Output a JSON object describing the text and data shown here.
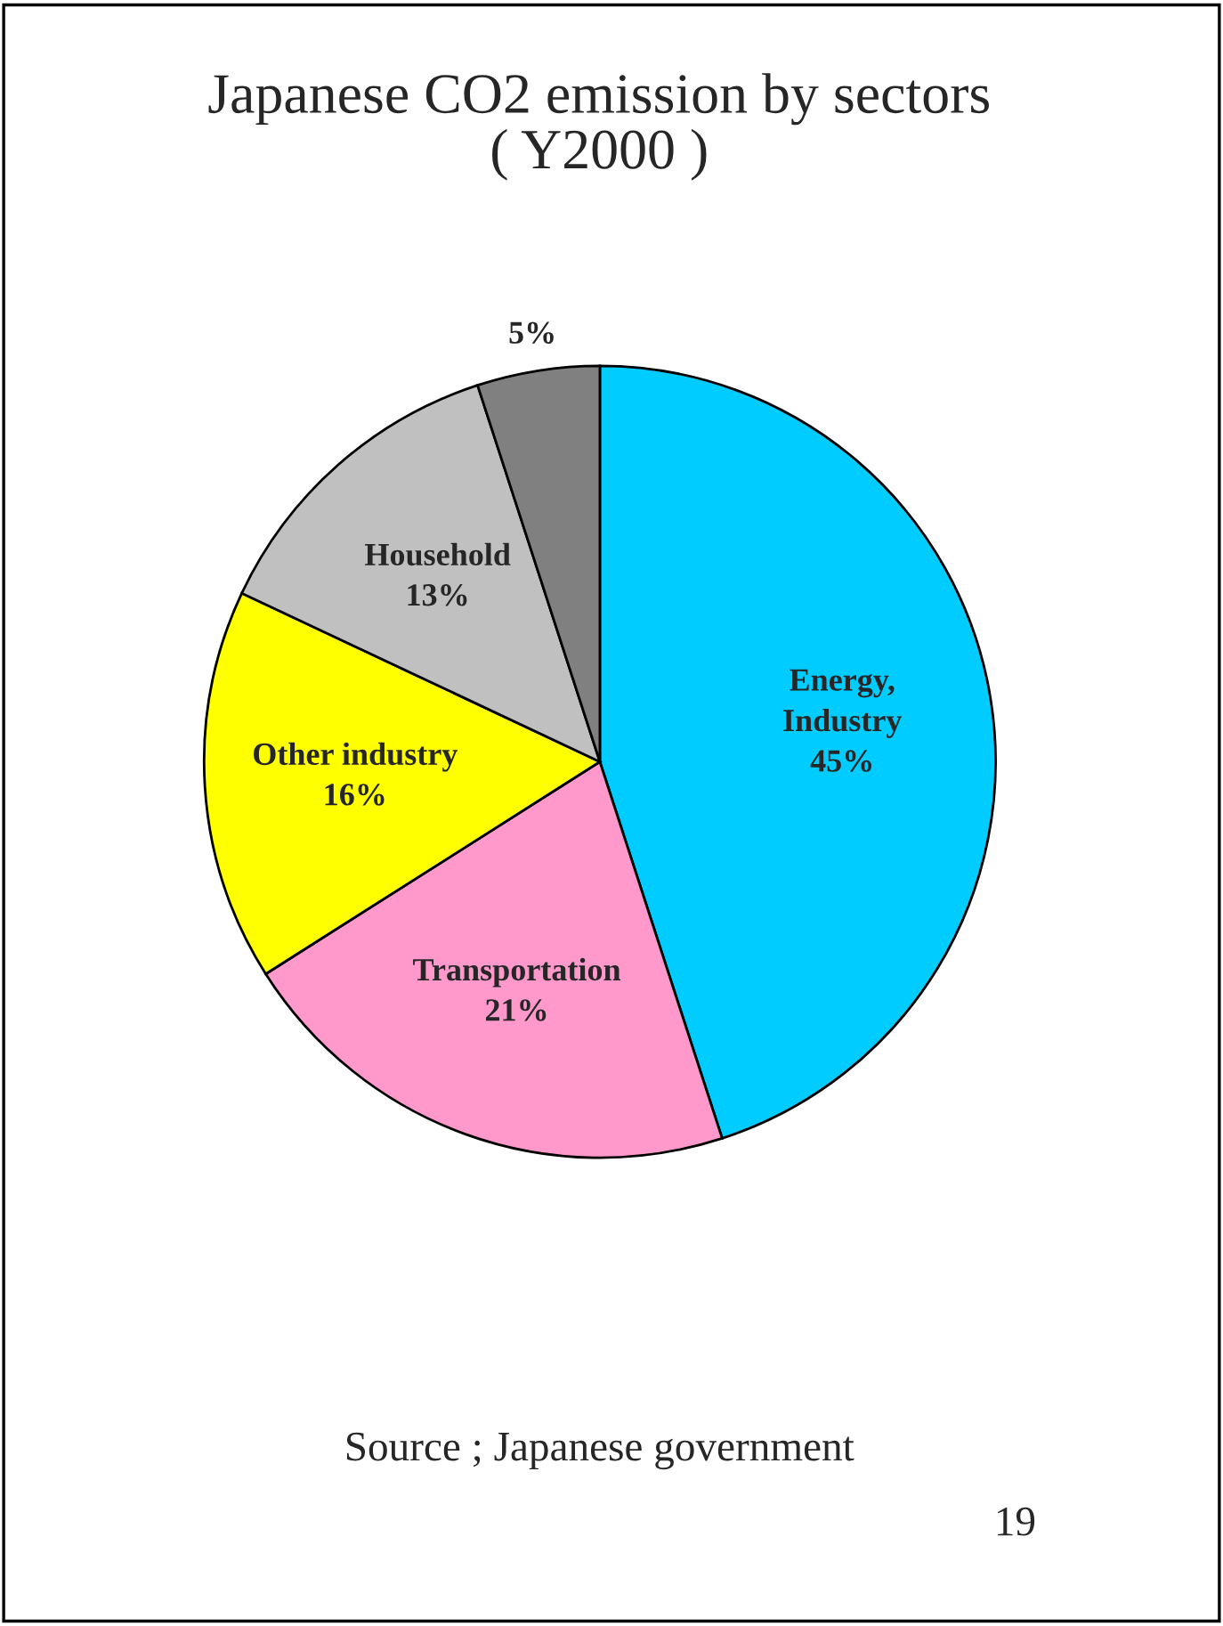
{
  "chart_data": {
    "type": "pie",
    "title": "Japanese CO2 emission by sectors\n( Y2000 )",
    "categories": [
      "Energy,\nIndustry",
      "Transportation",
      "Other industry",
      "Household",
      null
    ],
    "values": [
      45,
      21,
      16,
      13,
      5
    ],
    "colors": [
      "#00ccff",
      "#ff99cc",
      "#ffff00",
      "#c0c0c0",
      "#808080"
    ],
    "value_labels": [
      "45%",
      "21%",
      "16%",
      "13%",
      "5%"
    ],
    "annotations": [
      "Source ; Japanese government",
      "19"
    ]
  }
}
